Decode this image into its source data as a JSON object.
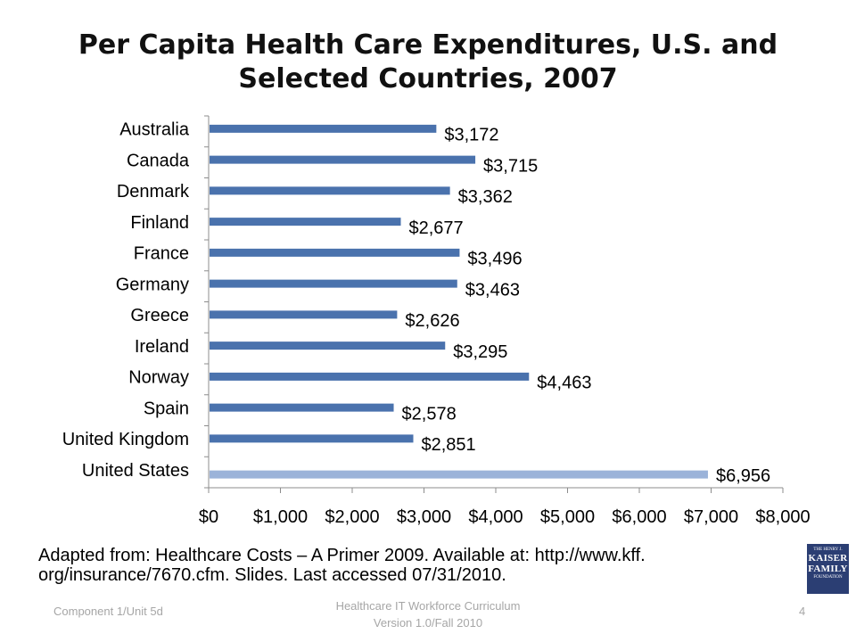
{
  "slide": {
    "title_line1": "Per Capita Health Care Expenditures, U.S. and",
    "title_line2": "Selected Countries, 2007",
    "source_line1": "Adapted from: Healthcare Costs – A Primer 2009. Available at: http://www.kff.",
    "source_line2": "org/insurance/7670.cfm. Slides. Last accessed 07/31/2010.",
    "logo_line1": "THE HENRY J.",
    "logo_line2": "KAISER",
    "logo_line3": "FAMILY",
    "logo_line4": "FOUNDATION",
    "footer_left": "Component 1/Unit 5d",
    "footer_center_line1": "Healthcare IT Workforce Curriculum",
    "footer_center_line2": "Version 1.0/Fall 2010",
    "page_number": "4"
  },
  "chart_data": {
    "type": "bar",
    "orientation": "horizontal",
    "categories": [
      "Australia",
      "Canada",
      "Denmark",
      "Finland",
      "France",
      "Germany",
      "Greece",
      "Ireland",
      "Norway",
      "Spain",
      "United Kingdom",
      "United States"
    ],
    "values": [
      3172,
      3715,
      3362,
      2677,
      3496,
      3463,
      2626,
      3295,
      4463,
      2578,
      2851,
      6956
    ],
    "data_labels": [
      "$3,172",
      "$3,715",
      "$3,362",
      "$2,677",
      "$3,496",
      "$3,463",
      "$2,626",
      "$3,295",
      "$4,463",
      "$2,578",
      "$2,851",
      "$6,956"
    ],
    "xlim": [
      0,
      8000
    ],
    "x_ticks": [
      0,
      1000,
      2000,
      3000,
      4000,
      5000,
      6000,
      7000,
      8000
    ],
    "x_tick_labels": [
      "$0",
      "$1,000",
      "$2,000",
      "$3,000",
      "$4,000",
      "$5,000",
      "$6,000",
      "$7,000",
      "$8,000"
    ],
    "bar_color": "#4a72ad",
    "highlight_color": "#9bb3d9",
    "highlight_category": "United States",
    "grid": false,
    "legend": "none"
  }
}
